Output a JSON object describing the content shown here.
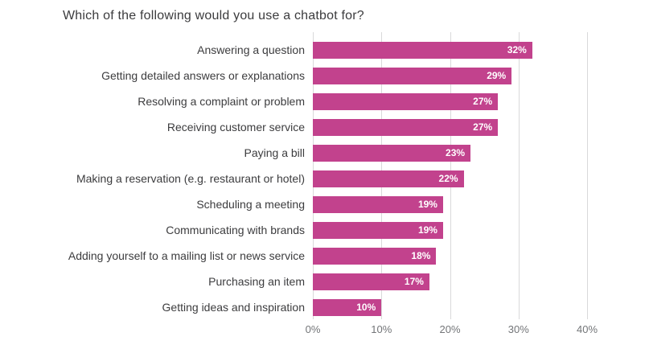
{
  "page": {
    "background_color": "#ffffff"
  },
  "chart_data": {
    "type": "bar",
    "orientation": "horizontal",
    "title": "Which of the following would you use a chatbot for?",
    "categories": [
      "Answering a question",
      "Getting detailed answers or explanations",
      "Resolving a complaint or problem",
      "Receiving customer service",
      "Paying a bill",
      "Making a reservation (e.g. restaurant or hotel)",
      "Scheduling a meeting",
      "Communicating with brands",
      "Adding yourself to a mailing list or news service",
      "Purchasing an item",
      "Getting ideas and inspiration"
    ],
    "values": [
      32,
      29,
      27,
      27,
      23,
      22,
      19,
      19,
      18,
      17,
      10
    ],
    "value_labels": [
      "32%",
      "29%",
      "27%",
      "27%",
      "23%",
      "22%",
      "19%",
      "19%",
      "18%",
      "17%",
      "10%"
    ],
    "xlabel": "",
    "ylabel": "",
    "xlim": [
      0,
      40
    ],
    "xticks": [
      0,
      10,
      20,
      30,
      40
    ],
    "xtick_labels": [
      "0%",
      "10%",
      "20%",
      "30%",
      "40%"
    ],
    "grid": true,
    "legend": false,
    "bar_color": "#c2428d",
    "value_label_color": "#ffffff",
    "gridline_color": "#d9d9da",
    "category_label_color": "#3c3c3e",
    "tick_label_color": "#737578",
    "title_color": "#3b3b3d"
  }
}
